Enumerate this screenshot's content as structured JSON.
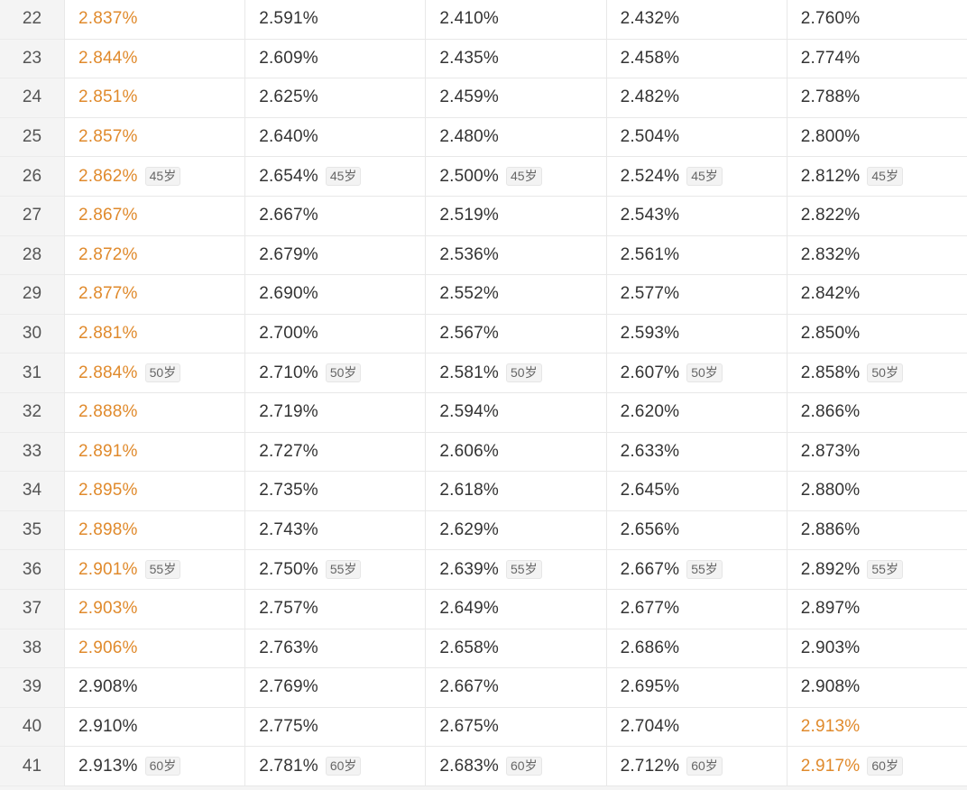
{
  "colors": {
    "highlight": "#e08a2c",
    "text": "#333333",
    "index": "#555555"
  },
  "rows": [
    {
      "idx": "22",
      "cells": [
        {
          "v": "2.837%",
          "hl": true
        },
        {
          "v": "2.591%"
        },
        {
          "v": "2.410%"
        },
        {
          "v": "2.432%"
        },
        {
          "v": "2.760%"
        }
      ]
    },
    {
      "idx": "23",
      "cells": [
        {
          "v": "2.844%",
          "hl": true
        },
        {
          "v": "2.609%"
        },
        {
          "v": "2.435%"
        },
        {
          "v": "2.458%"
        },
        {
          "v": "2.774%"
        }
      ]
    },
    {
      "idx": "24",
      "cells": [
        {
          "v": "2.851%",
          "hl": true
        },
        {
          "v": "2.625%"
        },
        {
          "v": "2.459%"
        },
        {
          "v": "2.482%"
        },
        {
          "v": "2.788%"
        }
      ]
    },
    {
      "idx": "25",
      "cells": [
        {
          "v": "2.857%",
          "hl": true
        },
        {
          "v": "2.640%"
        },
        {
          "v": "2.480%"
        },
        {
          "v": "2.504%"
        },
        {
          "v": "2.800%"
        }
      ]
    },
    {
      "idx": "26",
      "cells": [
        {
          "v": "2.862%",
          "hl": true,
          "tag": "45岁"
        },
        {
          "v": "2.654%",
          "tag": "45岁"
        },
        {
          "v": "2.500%",
          "tag": "45岁"
        },
        {
          "v": "2.524%",
          "tag": "45岁"
        },
        {
          "v": "2.812%",
          "tag": "45岁"
        }
      ]
    },
    {
      "idx": "27",
      "cells": [
        {
          "v": "2.867%",
          "hl": true
        },
        {
          "v": "2.667%"
        },
        {
          "v": "2.519%"
        },
        {
          "v": "2.543%"
        },
        {
          "v": "2.822%"
        }
      ]
    },
    {
      "idx": "28",
      "cells": [
        {
          "v": "2.872%",
          "hl": true
        },
        {
          "v": "2.679%"
        },
        {
          "v": "2.536%"
        },
        {
          "v": "2.561%"
        },
        {
          "v": "2.832%"
        }
      ]
    },
    {
      "idx": "29",
      "cells": [
        {
          "v": "2.877%",
          "hl": true
        },
        {
          "v": "2.690%"
        },
        {
          "v": "2.552%"
        },
        {
          "v": "2.577%"
        },
        {
          "v": "2.842%"
        }
      ]
    },
    {
      "idx": "30",
      "cells": [
        {
          "v": "2.881%",
          "hl": true
        },
        {
          "v": "2.700%"
        },
        {
          "v": "2.567%"
        },
        {
          "v": "2.593%"
        },
        {
          "v": "2.850%"
        }
      ]
    },
    {
      "idx": "31",
      "cells": [
        {
          "v": "2.884%",
          "hl": true,
          "tag": "50岁"
        },
        {
          "v": "2.710%",
          "tag": "50岁"
        },
        {
          "v": "2.581%",
          "tag": "50岁"
        },
        {
          "v": "2.607%",
          "tag": "50岁"
        },
        {
          "v": "2.858%",
          "tag": "50岁"
        }
      ]
    },
    {
      "idx": "32",
      "cells": [
        {
          "v": "2.888%",
          "hl": true
        },
        {
          "v": "2.719%"
        },
        {
          "v": "2.594%"
        },
        {
          "v": "2.620%"
        },
        {
          "v": "2.866%"
        }
      ]
    },
    {
      "idx": "33",
      "cells": [
        {
          "v": "2.891%",
          "hl": true
        },
        {
          "v": "2.727%"
        },
        {
          "v": "2.606%"
        },
        {
          "v": "2.633%"
        },
        {
          "v": "2.873%"
        }
      ]
    },
    {
      "idx": "34",
      "cells": [
        {
          "v": "2.895%",
          "hl": true
        },
        {
          "v": "2.735%"
        },
        {
          "v": "2.618%"
        },
        {
          "v": "2.645%"
        },
        {
          "v": "2.880%"
        }
      ]
    },
    {
      "idx": "35",
      "cells": [
        {
          "v": "2.898%",
          "hl": true
        },
        {
          "v": "2.743%"
        },
        {
          "v": "2.629%"
        },
        {
          "v": "2.656%"
        },
        {
          "v": "2.886%"
        }
      ]
    },
    {
      "idx": "36",
      "cells": [
        {
          "v": "2.901%",
          "hl": true,
          "tag": "55岁"
        },
        {
          "v": "2.750%",
          "tag": "55岁"
        },
        {
          "v": "2.639%",
          "tag": "55岁"
        },
        {
          "v": "2.667%",
          "tag": "55岁"
        },
        {
          "v": "2.892%",
          "tag": "55岁"
        }
      ]
    },
    {
      "idx": "37",
      "cells": [
        {
          "v": "2.903%",
          "hl": true
        },
        {
          "v": "2.757%"
        },
        {
          "v": "2.649%"
        },
        {
          "v": "2.677%"
        },
        {
          "v": "2.897%"
        }
      ]
    },
    {
      "idx": "38",
      "cells": [
        {
          "v": "2.906%",
          "hl": true
        },
        {
          "v": "2.763%"
        },
        {
          "v": "2.658%"
        },
        {
          "v": "2.686%"
        },
        {
          "v": "2.903%"
        }
      ]
    },
    {
      "idx": "39",
      "cells": [
        {
          "v": "2.908%"
        },
        {
          "v": "2.769%"
        },
        {
          "v": "2.667%"
        },
        {
          "v": "2.695%"
        },
        {
          "v": "2.908%"
        }
      ]
    },
    {
      "idx": "40",
      "cells": [
        {
          "v": "2.910%"
        },
        {
          "v": "2.775%"
        },
        {
          "v": "2.675%"
        },
        {
          "v": "2.704%"
        },
        {
          "v": "2.913%",
          "hl": true
        }
      ]
    },
    {
      "idx": "41",
      "cells": [
        {
          "v": "2.913%",
          "tag": "60岁"
        },
        {
          "v": "2.781%",
          "tag": "60岁"
        },
        {
          "v": "2.683%",
          "tag": "60岁"
        },
        {
          "v": "2.712%",
          "tag": "60岁"
        },
        {
          "v": "2.917%",
          "hl": true,
          "tag": "60岁"
        }
      ]
    }
  ]
}
